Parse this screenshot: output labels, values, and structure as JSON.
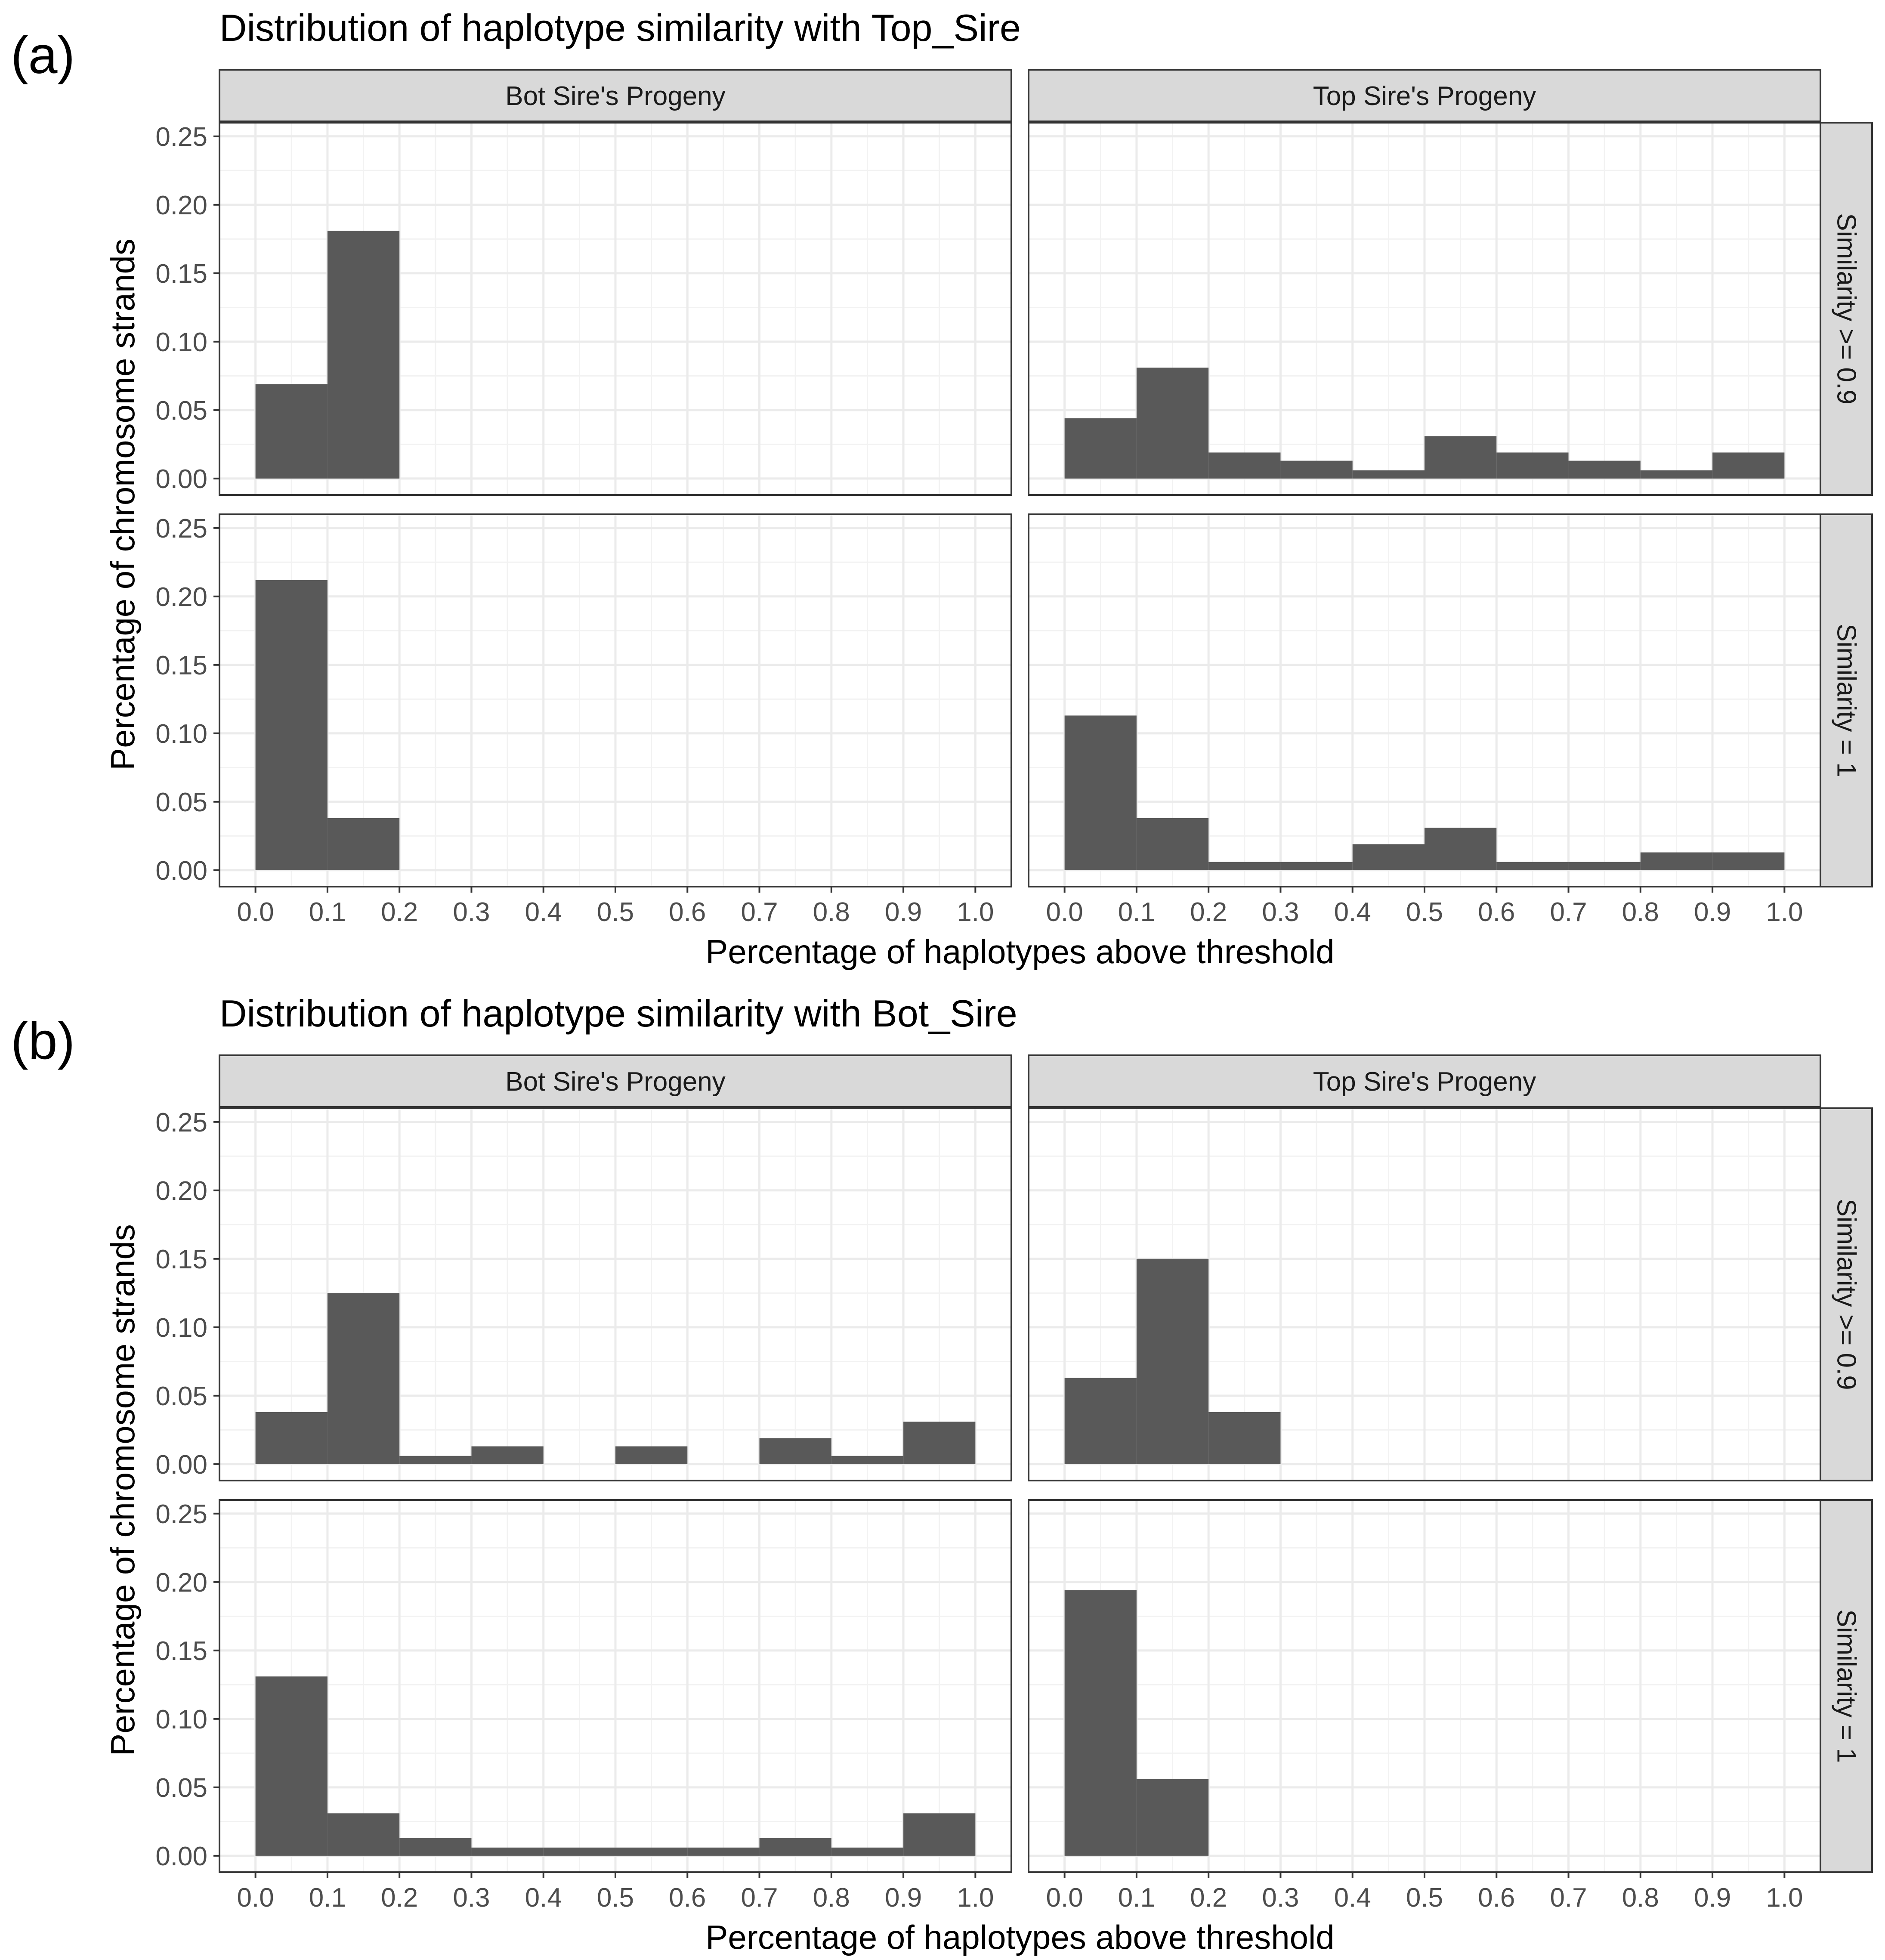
{
  "chart_data": [
    {
      "panel_label": "(a)",
      "type": "histogram",
      "title": "Distribution of haplotype similarity with Top_Sire",
      "xlabel": "Percentage of haplotypes above threshold",
      "ylabel": "Percentage of chromosome strands",
      "xlim": [
        -0.05,
        1.05
      ],
      "ylim": [
        -0.012,
        0.26
      ],
      "x_ticks": [
        "0.0",
        "0.1",
        "0.2",
        "0.3",
        "0.4",
        "0.5",
        "0.6",
        "0.7",
        "0.8",
        "0.9",
        "1.0"
      ],
      "y_ticks": [
        "0.00",
        "0.05",
        "0.10",
        "0.15",
        "0.20",
        "0.25"
      ],
      "bin_width": 0.1,
      "bin_starts": [
        0.0,
        0.1,
        0.2,
        0.3,
        0.4,
        0.5,
        0.6,
        0.7,
        0.8,
        0.9
      ],
      "facet_columns": [
        "Bot Sire's Progeny",
        "Top Sire's Progeny"
      ],
      "facet_rows": [
        "Similarity >= 0.9",
        "Similarity = 1"
      ],
      "facets": [
        {
          "column": "Bot Sire's Progeny",
          "row": "Similarity >= 0.9",
          "values": [
            0.069,
            0.181,
            0,
            0,
            0,
            0,
            0,
            0,
            0,
            0
          ]
        },
        {
          "column": "Top Sire's Progeny",
          "row": "Similarity >= 0.9",
          "values": [
            0.044,
            0.081,
            0.019,
            0.013,
            0.006,
            0.031,
            0.019,
            0.013,
            0.006,
            0.019
          ]
        },
        {
          "column": "Bot Sire's Progeny",
          "row": "Similarity = 1",
          "values": [
            0.212,
            0.038,
            0,
            0,
            0,
            0,
            0,
            0,
            0,
            0
          ]
        },
        {
          "column": "Top Sire's Progeny",
          "row": "Similarity = 1",
          "values": [
            0.113,
            0.038,
            0.006,
            0.006,
            0.019,
            0.031,
            0.006,
            0.006,
            0.013,
            0.013
          ]
        }
      ]
    },
    {
      "panel_label": "(b)",
      "type": "histogram",
      "title": "Distribution of haplotype similarity with Bot_Sire",
      "xlabel": "Percentage of haplotypes above threshold",
      "ylabel": "Percentage of chromosome strands",
      "xlim": [
        -0.05,
        1.05
      ],
      "ylim": [
        -0.012,
        0.26
      ],
      "x_ticks": [
        "0.0",
        "0.1",
        "0.2",
        "0.3",
        "0.4",
        "0.5",
        "0.6",
        "0.7",
        "0.8",
        "0.9",
        "1.0"
      ],
      "y_ticks": [
        "0.00",
        "0.05",
        "0.10",
        "0.15",
        "0.20",
        "0.25"
      ],
      "bin_width": 0.1,
      "bin_starts": [
        0.0,
        0.1,
        0.2,
        0.3,
        0.4,
        0.5,
        0.6,
        0.7,
        0.8,
        0.9
      ],
      "facet_columns": [
        "Bot Sire's Progeny",
        "Top Sire's Progeny"
      ],
      "facet_rows": [
        "Similarity >= 0.9",
        "Similarity = 1"
      ],
      "facets": [
        {
          "column": "Bot Sire's Progeny",
          "row": "Similarity >= 0.9",
          "values": [
            0.038,
            0.125,
            0.006,
            0.013,
            0,
            0.013,
            0,
            0.019,
            0.006,
            0.031
          ]
        },
        {
          "column": "Top Sire's Progeny",
          "row": "Similarity >= 0.9",
          "values": [
            0.063,
            0.15,
            0.038,
            0,
            0,
            0,
            0,
            0,
            0,
            0
          ]
        },
        {
          "column": "Bot Sire's Progeny",
          "row": "Similarity = 1",
          "values": [
            0.131,
            0.031,
            0.013,
            0.006,
            0.006,
            0.006,
            0.006,
            0.013,
            0.006,
            0.031
          ]
        },
        {
          "column": "Top Sire's Progeny",
          "row": "Similarity = 1",
          "values": [
            0.194,
            0.056,
            0,
            0,
            0,
            0,
            0,
            0,
            0,
            0
          ]
        }
      ]
    }
  ],
  "colors": {
    "bar": "#595959",
    "panel_border": "#333333",
    "grid_major": "#ebebeb",
    "grid_minor": "#f2f2f2",
    "strip_fill": "#d9d9d9",
    "tick_text": "#4d4d4d"
  }
}
